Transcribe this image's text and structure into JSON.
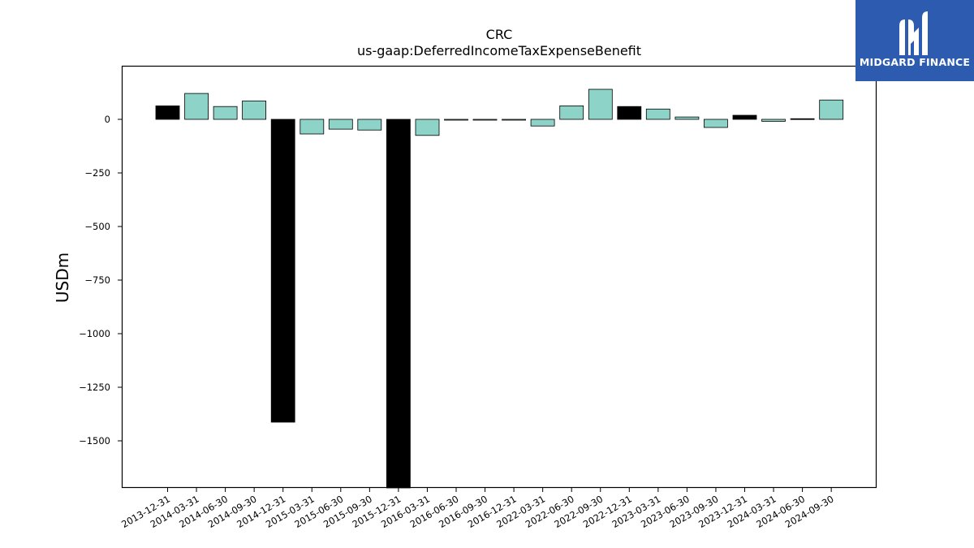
{
  "chart_data": {
    "type": "bar",
    "title": "CRC",
    "subtitle": "us-gaap:DeferredIncomeTaxExpenseBenefit",
    "xlabel": "",
    "ylabel": "USDm",
    "ylim": [
      -1720,
      250
    ],
    "yticks": [
      0,
      -250,
      -500,
      -750,
      -1000,
      -1250,
      -1500
    ],
    "ytick_labels": [
      "0",
      "−250",
      "−500",
      "−750",
      "−1000",
      "−1250",
      "−1500"
    ],
    "grid": false,
    "categories": [
      "2013-12-31",
      "2014-03-31",
      "2014-06-30",
      "2014-09-30",
      "2014-12-31",
      "2015-03-31",
      "2015-06-30",
      "2015-09-30",
      "2015-12-31",
      "2016-03-31",
      "2016-06-30",
      "2016-09-30",
      "2016-12-31",
      "2022-03-31",
      "2022-06-30",
      "2022-09-30",
      "2022-12-31",
      "2023-03-31",
      "2023-06-30",
      "2023-09-30",
      "2023-12-31",
      "2024-03-31",
      "2024-06-30",
      "2024-09-30"
    ],
    "values": [
      63,
      121,
      60,
      86,
      -1413,
      -68,
      -46,
      -50,
      -1720,
      -75,
      -2,
      -2,
      -2,
      -31,
      63,
      140,
      60,
      48,
      11,
      -38,
      19,
      -9,
      3,
      90
    ],
    "bar_colors": [
      "#000000",
      "#8dd3c7",
      "#8dd3c7",
      "#8dd3c7",
      "#000000",
      "#8dd3c7",
      "#8dd3c7",
      "#8dd3c7",
      "#000000",
      "#8dd3c7",
      "#8dd3c7",
      "#8dd3c7",
      "#8dd3c7",
      "#8dd3c7",
      "#8dd3c7",
      "#8dd3c7",
      "#000000",
      "#8dd3c7",
      "#8dd3c7",
      "#8dd3c7",
      "#000000",
      "#8dd3c7",
      "#000000",
      "#8dd3c7"
    ]
  },
  "logo": {
    "text": "MIDGARD FINANCE",
    "background": "#2d5bb0"
  }
}
